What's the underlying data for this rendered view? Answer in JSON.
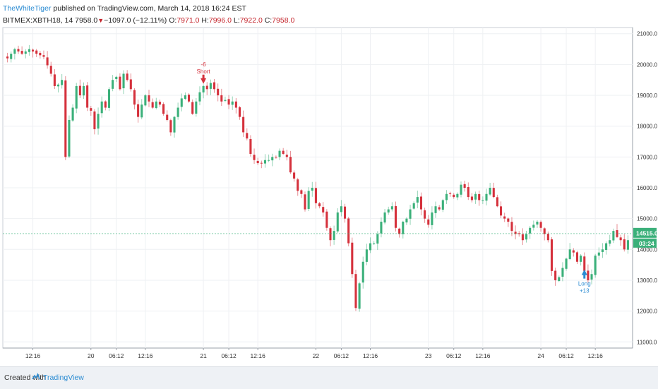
{
  "header": {
    "user": "TheWhiteTiger",
    "published": " published on TradingView.com, March 14, 2018 16:24 EST"
  },
  "legend": {
    "symbol": "BITMEX:XBTH18, 14",
    "last": "7958.0",
    "change": "−1097.0 (−12.11%)",
    "o_label": "O:",
    "o_value": "7971.0",
    "h_label": "H:",
    "h_value": "7996.0",
    "l_label": "L:",
    "l_value": "7922.0",
    "c_label": "C:",
    "c_value": "7958.0"
  },
  "footer": {
    "created": "Created with",
    "brand": "TradingView"
  },
  "colors": {
    "up": "#3bb07a",
    "down": "#d5313c",
    "grid": "#eef0f3",
    "accent": "#2a8bd2",
    "last_price_bg": "#3bb07a"
  },
  "icons": {
    "arrow_down": "arrow-down-icon",
    "arrow_up": "arrow-up-icon",
    "logo": "tradingview-logo-icon"
  },
  "chart_data": {
    "type": "candlestick",
    "title": "",
    "xlabel": "",
    "ylabel": "",
    "grid": true,
    "ylim": [
      10800,
      21200
    ],
    "y_ticks": [
      "21000.0",
      "20000.0",
      "19000.0",
      "18000.0",
      "17000.0",
      "16000.0",
      "15000.0",
      "14000.0",
      "13000.0",
      "12000.0",
      "11000.0"
    ],
    "y_tick_values": [
      21000,
      20000,
      19000,
      18000,
      17000,
      16000,
      15000,
      14000,
      13000,
      12000,
      11000
    ],
    "x_ticks": [
      {
        "label": "12:16",
        "bar": 7
      },
      {
        "label": "20",
        "bar": 23
      },
      {
        "label": "06:12",
        "bar": 30
      },
      {
        "label": "12:16",
        "bar": 38
      },
      {
        "label": "21",
        "bar": 54
      },
      {
        "label": "06:12",
        "bar": 61
      },
      {
        "label": "12:16",
        "bar": 69
      },
      {
        "label": "22",
        "bar": 85
      },
      {
        "label": "06:12",
        "bar": 92
      },
      {
        "label": "12:16",
        "bar": 100
      },
      {
        "label": "23",
        "bar": 116
      },
      {
        "label": "06:12",
        "bar": 123
      },
      {
        "label": "12:16",
        "bar": 131
      },
      {
        "label": "24",
        "bar": 147
      },
      {
        "label": "06:12",
        "bar": 154
      },
      {
        "label": "12:16",
        "bar": 162
      }
    ],
    "close_path": [
      [
        0,
        20200
      ],
      [
        2,
        20500
      ],
      [
        4,
        20350
      ],
      [
        6,
        20500
      ],
      [
        8,
        20350
      ],
      [
        10,
        20250
      ],
      [
        12,
        19700
      ],
      [
        13,
        19300
      ],
      [
        14,
        19350
      ],
      [
        15,
        19500
      ],
      [
        16,
        17000
      ],
      [
        17,
        18200
      ],
      [
        18,
        18600
      ],
      [
        19,
        19300
      ],
      [
        20,
        19000
      ],
      [
        21,
        19300
      ],
      [
        22,
        18600
      ],
      [
        23,
        18500
      ],
      [
        24,
        17900
      ],
      [
        25,
        18400
      ],
      [
        26,
        18800
      ],
      [
        27,
        18600
      ],
      [
        28,
        19200
      ],
      [
        29,
        19500
      ],
      [
        30,
        19600
      ],
      [
        31,
        19200
      ],
      [
        32,
        19700
      ],
      [
        33,
        19500
      ],
      [
        34,
        19200
      ],
      [
        35,
        18700
      ],
      [
        36,
        18300
      ],
      [
        37,
        18700
      ],
      [
        38,
        19000
      ],
      [
        39,
        18800
      ],
      [
        40,
        18600
      ],
      [
        41,
        18800
      ],
      [
        42,
        18700
      ],
      [
        43,
        18400
      ],
      [
        44,
        18200
      ],
      [
        45,
        17800
      ],
      [
        46,
        18300
      ],
      [
        47,
        18600
      ],
      [
        48,
        18900
      ],
      [
        49,
        19000
      ],
      [
        50,
        18800
      ],
      [
        51,
        18400
      ],
      [
        52,
        18800
      ],
      [
        53,
        19100
      ],
      [
        54,
        19300
      ],
      [
        55,
        19200
      ],
      [
        56,
        19400
      ],
      [
        57,
        19200
      ],
      [
        58,
        19000
      ],
      [
        59,
        18800
      ],
      [
        60,
        18850
      ],
      [
        61,
        18700
      ],
      [
        62,
        18800
      ],
      [
        63,
        18600
      ],
      [
        64,
        18300
      ],
      [
        65,
        17800
      ],
      [
        66,
        17600
      ],
      [
        67,
        17100
      ],
      [
        68,
        16900
      ],
      [
        69,
        16800
      ],
      [
        70,
        16800
      ],
      [
        71,
        16900
      ],
      [
        72,
        16900
      ],
      [
        73,
        17000
      ],
      [
        74,
        17000
      ],
      [
        75,
        17200
      ],
      [
        76,
        17100
      ],
      [
        77,
        17000
      ],
      [
        78,
        16500
      ],
      [
        79,
        16300
      ],
      [
        80,
        15900
      ],
      [
        81,
        15800
      ],
      [
        82,
        15300
      ],
      [
        83,
        15900
      ],
      [
        84,
        16000
      ],
      [
        85,
        15500
      ],
      [
        86,
        15400
      ],
      [
        87,
        15200
      ],
      [
        88,
        14700
      ],
      [
        89,
        14300
      ],
      [
        90,
        14600
      ],
      [
        91,
        15200
      ],
      [
        92,
        15400
      ],
      [
        93,
        15000
      ],
      [
        94,
        14200
      ],
      [
        95,
        13200
      ],
      [
        96,
        12100
      ],
      [
        97,
        12900
      ],
      [
        98,
        13600
      ],
      [
        99,
        14000
      ],
      [
        100,
        14200
      ],
      [
        101,
        14200
      ],
      [
        102,
        14500
      ],
      [
        103,
        14900
      ],
      [
        104,
        15200
      ],
      [
        105,
        15300
      ],
      [
        106,
        15400
      ],
      [
        107,
        14700
      ],
      [
        108,
        14500
      ],
      [
        109,
        14900
      ],
      [
        110,
        15000
      ],
      [
        111,
        15300
      ],
      [
        112,
        15500
      ],
      [
        113,
        15700
      ],
      [
        114,
        15300
      ],
      [
        115,
        15000
      ],
      [
        116,
        14800
      ],
      [
        117,
        15200
      ],
      [
        118,
        15400
      ],
      [
        119,
        15300
      ],
      [
        120,
        15600
      ],
      [
        121,
        15800
      ],
      [
        122,
        15800
      ],
      [
        123,
        15700
      ],
      [
        124,
        15800
      ],
      [
        125,
        16100
      ],
      [
        126,
        16000
      ],
      [
        127,
        15700
      ],
      [
        128,
        15600
      ],
      [
        129,
        15800
      ],
      [
        130,
        15600
      ],
      [
        131,
        15600
      ],
      [
        132,
        15800
      ],
      [
        133,
        16000
      ],
      [
        134,
        15700
      ],
      [
        135,
        15400
      ],
      [
        136,
        15100
      ],
      [
        137,
        15000
      ],
      [
        138,
        14900
      ],
      [
        139,
        14600
      ],
      [
        140,
        14500
      ],
      [
        141,
        14500
      ],
      [
        142,
        14300
      ],
      [
        143,
        14500
      ],
      [
        144,
        14700
      ],
      [
        145,
        14800
      ],
      [
        146,
        14900
      ],
      [
        147,
        14700
      ],
      [
        148,
        14500
      ],
      [
        149,
        14300
      ],
      [
        150,
        13300
      ],
      [
        151,
        13000
      ],
      [
        152,
        13100
      ],
      [
        153,
        13400
      ],
      [
        154,
        13700
      ],
      [
        155,
        14000
      ],
      [
        156,
        13900
      ],
      [
        157,
        13600
      ],
      [
        158,
        13800
      ],
      [
        159,
        13300
      ],
      [
        160,
        13000
      ],
      [
        161,
        13200
      ],
      [
        162,
        13800
      ],
      [
        163,
        13900
      ],
      [
        164,
        14000
      ],
      [
        165,
        14200
      ],
      [
        166,
        14300
      ],
      [
        167,
        14600
      ],
      [
        168,
        14400
      ],
      [
        169,
        14300
      ],
      [
        170,
        14000
      ],
      [
        171,
        14300
      ]
    ],
    "bar_count": 172,
    "annotations": [
      {
        "type": "short",
        "label": "Short",
        "value": "-6",
        "bar": 54,
        "price": 19000
      },
      {
        "type": "long",
        "label": "Long",
        "value": "+13",
        "bar": 159,
        "price": 13600
      }
    ],
    "last_price_label": "14515.0",
    "countdown_label": "03:24",
    "last_price": 14515
  }
}
